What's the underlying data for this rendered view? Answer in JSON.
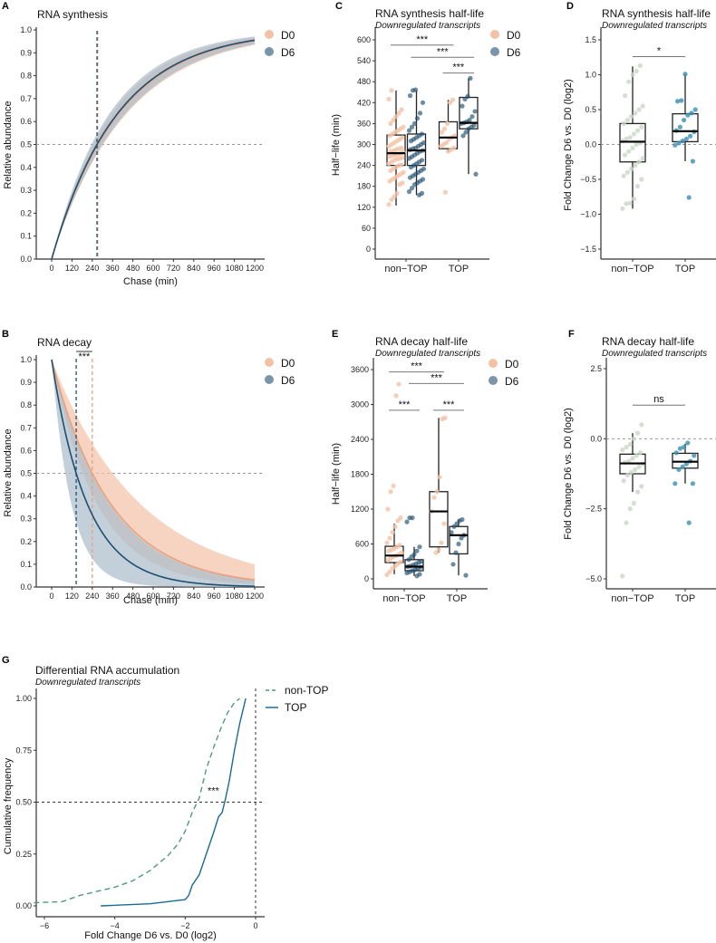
{
  "colors": {
    "D0_fill": "#f2c2a6",
    "D0_line": "#e9a07c",
    "D6_fill": "#a9bccb",
    "D6_line": "#1e4f70",
    "nonTOP_point": "#c9d6c8",
    "TOP_point": "#3b8fb1",
    "G_nonTOP": "#4d9a7c",
    "G_TOP": "#1a6a96"
  },
  "chart_data": [
    {
      "panel": "A",
      "type": "line",
      "title": "RNA synthesis",
      "xlabel": "Chase (min)",
      "ylabel": "Relative abundance",
      "xticks": [
        "0",
        "120",
        "240",
        "360",
        "480",
        "600",
        "720",
        "840",
        "960",
        "1080",
        "1200"
      ],
      "yticks": [
        "0.0",
        "0.1",
        "0.2",
        "0.3",
        "0.4",
        "0.5",
        "0.6",
        "0.7",
        "0.8",
        "0.9",
        "1.0"
      ],
      "xlim": [
        0,
        1200
      ],
      "ylim": [
        0,
        1
      ],
      "model": "1 - 2^(-t/halflife)",
      "hline": 0.5,
      "legend": [
        "D0",
        "D6"
      ],
      "series": [
        {
          "name": "D0",
          "halflife": 272,
          "band_halflife": [
            245,
            305
          ]
        },
        {
          "name": "D6",
          "halflife": 268,
          "band_halflife": [
            235,
            300
          ]
        }
      ]
    },
    {
      "panel": "B",
      "type": "line",
      "title": "RNA decay",
      "xlabel": "Chase (min)",
      "ylabel": "Relative abundance",
      "xticks": [
        "0",
        "120",
        "240",
        "360",
        "480",
        "600",
        "720",
        "840",
        "960",
        "1080",
        "1200"
      ],
      "yticks": [
        "0.0",
        "0.1",
        "0.2",
        "0.3",
        "0.4",
        "0.5",
        "0.6",
        "0.7",
        "0.8",
        "0.9",
        "1.0"
      ],
      "xlim": [
        0,
        1200
      ],
      "ylim": [
        0,
        1
      ],
      "model": "2^(-t/halflife)",
      "hline": 0.5,
      "significance": "***",
      "legend": [
        "D0",
        "D6"
      ],
      "series": [
        {
          "name": "D0",
          "halflife": 240,
          "band_halflife": [
            185,
            361
          ]
        },
        {
          "name": "D6",
          "halflife": 145,
          "band_halflife": [
            80,
            235
          ]
        }
      ]
    },
    {
      "panel": "C",
      "type": "box",
      "title": "RNA synthesis half-life",
      "subtitle": "Downregulated transcripts",
      "ylabel": "Half−life (min)",
      "categories": [
        "non−TOP",
        "TOP"
      ],
      "legend": [
        "D0",
        "D6"
      ],
      "ylim": [
        0,
        600
      ],
      "yticks": [
        "0",
        "60",
        "120",
        "180",
        "240",
        "300",
        "360",
        "420",
        "480",
        "540",
        "600"
      ],
      "groups": [
        {
          "cat": "non−TOP",
          "series": "D0",
          "q1": 240,
          "median": 275,
          "q3": 327,
          "whisker": [
            125,
            455
          ],
          "points": [
            128,
            142,
            150,
            160,
            185,
            190,
            195,
            200,
            205,
            210,
            215,
            220,
            225,
            230,
            235,
            240,
            242,
            245,
            250,
            255,
            258,
            260,
            262,
            265,
            268,
            270,
            272,
            275,
            278,
            280,
            282,
            285,
            288,
            290,
            295,
            300,
            305,
            310,
            315,
            320,
            325,
            330,
            335,
            340,
            345,
            350,
            360,
            370,
            380,
            390,
            400,
            430,
            455
          ]
        },
        {
          "cat": "non−TOP",
          "series": "D6",
          "q1": 240,
          "median": 283,
          "q3": 330,
          "whisker": [
            155,
            455
          ],
          "points": [
            155,
            160,
            165,
            175,
            185,
            190,
            195,
            200,
            205,
            210,
            215,
            220,
            225,
            230,
            235,
            240,
            245,
            250,
            255,
            260,
            265,
            270,
            275,
            280,
            283,
            285,
            288,
            290,
            295,
            300,
            305,
            310,
            315,
            320,
            325,
            330,
            340,
            350,
            360,
            375,
            390,
            420,
            440,
            455,
            457
          ]
        },
        {
          "cat": "TOP",
          "series": "D0",
          "q1": 288,
          "median": 320,
          "q3": 365,
          "whisker": [
            280,
            428
          ],
          "points": [
            163,
            280,
            285,
            290,
            295,
            300,
            305,
            315,
            320,
            325,
            335,
            345,
            360,
            420,
            428
          ]
        },
        {
          "cat": "TOP",
          "series": "D6",
          "q1": 345,
          "median": 362,
          "q3": 435,
          "whisker": [
            215,
            490
          ],
          "points": [
            215,
            325,
            335,
            345,
            350,
            355,
            360,
            362,
            365,
            370,
            380,
            395,
            410,
            430,
            438,
            490
          ]
        }
      ],
      "brackets": [
        {
          "from": 0,
          "to": 2,
          "y": 585,
          "label": "***"
        },
        {
          "from": 1,
          "to": 3,
          "y": 550,
          "label": "***"
        },
        {
          "from": 2,
          "to": 3,
          "y": 505,
          "label": "***"
        }
      ]
    },
    {
      "panel": "D",
      "type": "box",
      "title": "RNA synthesis half-life",
      "subtitle": "Downregulated transcripts",
      "ylabel": "Fold Change D6 vs. D0 (log2)",
      "categories": [
        "non−TOP",
        "TOP"
      ],
      "ylim": [
        -1.5,
        1.5
      ],
      "hline": 0,
      "yticks": [
        "−1.5",
        "−1.0",
        "−0.5",
        "0.0",
        "0.5",
        "1.0",
        "1.5"
      ],
      "groups": [
        {
          "cat": "non−TOP",
          "q1": -0.25,
          "median": 0.04,
          "q3": 0.3,
          "whisker": [
            -0.92,
            1.12
          ],
          "points": [
            -0.92,
            -0.85,
            -0.84,
            -0.78,
            -0.6,
            -0.5,
            -0.45,
            -0.4,
            -0.35,
            -0.3,
            -0.25,
            -0.2,
            -0.15,
            -0.1,
            -0.05,
            0,
            0.02,
            0.05,
            0.08,
            0.1,
            0.15,
            0.2,
            0.25,
            0.3,
            0.35,
            0.4,
            0.45,
            0.5,
            0.55,
            0.7,
            0.9,
            1.0,
            1.05,
            1.13
          ]
        },
        {
          "cat": "TOP",
          "q1": 0.04,
          "median": 0.19,
          "q3": 0.44,
          "whisker": [
            -0.24,
            1.01
          ],
          "points": [
            -0.76,
            -0.24,
            -0.01,
            0.02,
            0.05,
            0.08,
            0.12,
            0.18,
            0.2,
            0.25,
            0.35,
            0.42,
            0.45,
            0.5,
            0.62,
            0.63,
            1.01
          ]
        }
      ],
      "brackets": [
        {
          "from": 0,
          "to": 1,
          "y": 1.26,
          "label": "*"
        }
      ]
    },
    {
      "panel": "E",
      "type": "box",
      "title": "RNA decay half-life",
      "subtitle": "Downregulated transcripts",
      "ylabel": "Half−life (min)",
      "categories": [
        "non−TOP",
        "TOP"
      ],
      "legend": [
        "D0",
        "D6"
      ],
      "ylim": [
        0,
        3600
      ],
      "yticks": [
        "0",
        "600",
        "1200",
        "1800",
        "2400",
        "3000",
        "3600"
      ],
      "groups": [
        {
          "cat": "non−TOP",
          "series": "D0",
          "q1": 280,
          "median": 400,
          "q3": 560,
          "whisker": [
            80,
            950
          ],
          "points": [
            70,
            120,
            180,
            220,
            260,
            290,
            320,
            350,
            380,
            400,
            420,
            450,
            480,
            500,
            520,
            550,
            580,
            620,
            700,
            800,
            900,
            1000,
            1050,
            1200,
            1500,
            1600,
            3150,
            3350
          ]
        },
        {
          "cat": "non−TOP",
          "series": "D6",
          "q1": 140,
          "median": 210,
          "q3": 330,
          "whisker": [
            50,
            550
          ],
          "points": [
            50,
            80,
            100,
            120,
            140,
            160,
            180,
            200,
            210,
            220,
            240,
            260,
            280,
            300,
            330,
            380,
            420,
            480,
            550,
            980,
            1050,
            1050
          ]
        },
        {
          "cat": "TOP",
          "series": "D0",
          "q1": 550,
          "median": 1160,
          "q3": 1500,
          "whisker": [
            450,
            2770
          ],
          "points": [
            450,
            500,
            620,
            950,
            1160,
            1400,
            1500,
            1750,
            2750,
            2770
          ]
        },
        {
          "cat": "TOP",
          "series": "D6",
          "q1": 430,
          "median": 750,
          "q3": 900,
          "whisker": [
            60,
            1020
          ],
          "points": [
            60,
            250,
            450,
            600,
            700,
            750,
            800,
            900,
            950,
            1000,
            1020
          ]
        }
      ],
      "brackets": [
        {
          "from": 0,
          "to": 2,
          "y": 3560,
          "label": "***"
        },
        {
          "from": 1,
          "to": 3,
          "y": 3360,
          "label": "***"
        },
        {
          "from": 0,
          "to": 1,
          "y": 2900,
          "label": "***"
        },
        {
          "from": 2,
          "to": 3,
          "y": 2900,
          "label": "***"
        }
      ]
    },
    {
      "panel": "F",
      "type": "box",
      "title": "RNA decay half-life",
      "subtitle": "Downregulated transcripts",
      "ylabel": "Fold Change D6 vs. D0 (log2)",
      "categories": [
        "non−TOP",
        "TOP"
      ],
      "ylim": [
        -5,
        2.5
      ],
      "hline": 0,
      "yticks": [
        "−5.0",
        "−2.5",
        "0.0",
        "2.5"
      ],
      "groups": [
        {
          "cat": "non−TOP",
          "q1": -1.25,
          "median": -0.88,
          "q3": -0.55,
          "whisker": [
            -1.9,
            0.2
          ],
          "points": [
            -4.9,
            -3,
            -2.5,
            -2.3,
            -1.9,
            -1.7,
            -1.5,
            -1.3,
            -1.2,
            -1.1,
            -1.0,
            -0.9,
            -0.85,
            -0.8,
            -0.7,
            -0.6,
            -0.5,
            -0.4,
            -0.3,
            -0.2,
            0,
            0.2,
            0.5
          ]
        },
        {
          "cat": "TOP",
          "q1": -1.05,
          "median": -0.82,
          "q3": -0.52,
          "whisker": [
            -1.6,
            -0.18
          ],
          "points": [
            -3,
            -1.6,
            -1.6,
            -1.1,
            -1.0,
            -0.9,
            -0.8,
            -0.6,
            -0.5,
            -0.35,
            -0.3,
            -0.15
          ]
        }
      ],
      "brackets": [
        {
          "from": 0,
          "to": 1,
          "y": 1.2,
          "label": "ns"
        }
      ]
    },
    {
      "panel": "G",
      "type": "line",
      "title": "Differential RNA accumulation",
      "subtitle": "Downregulated transcripts",
      "xlabel": "Fold Change D6 vs. D0 (log2)",
      "ylabel": "Cumulative frequency",
      "xticks": [
        "−6",
        "−4",
        "−2",
        "0"
      ],
      "yticks": [
        "0.00",
        "0.25",
        "0.50",
        "0.75",
        "1.00"
      ],
      "xlim": [
        -6.3,
        0.3
      ],
      "ylim": [
        0,
        1
      ],
      "hline": 0.5,
      "vline": 0,
      "significance": "***",
      "legend": [
        "non-TOP",
        "TOP"
      ],
      "series": [
        {
          "name": "non-TOP",
          "points": [
            [
              -6.3,
              0.015
            ],
            [
              -5.5,
              0.02
            ],
            [
              -5,
              0.05
            ],
            [
              -4.5,
              0.07
            ],
            [
              -4,
              0.09
            ],
            [
              -3.5,
              0.12
            ],
            [
              -3,
              0.17
            ],
            [
              -2.5,
              0.24
            ],
            [
              -2.2,
              0.3
            ],
            [
              -2,
              0.36
            ],
            [
              -1.8,
              0.45
            ],
            [
              -1.6,
              0.52
            ],
            [
              -1.4,
              0.66
            ],
            [
              -1.2,
              0.76
            ],
            [
              -1,
              0.85
            ],
            [
              -0.8,
              0.93
            ],
            [
              -0.6,
              0.98
            ],
            [
              -0.45,
              1.0
            ]
          ]
        },
        {
          "name": "TOP",
          "points": [
            [
              -4.4,
              0
            ],
            [
              -3,
              0.01
            ],
            [
              -2,
              0.03
            ],
            [
              -1.9,
              0.05
            ],
            [
              -1.8,
              0.1
            ],
            [
              -1.6,
              0.15
            ],
            [
              -1.4,
              0.25
            ],
            [
              -1.2,
              0.35
            ],
            [
              -1.05,
              0.43
            ],
            [
              -0.95,
              0.45
            ],
            [
              -0.85,
              0.52
            ],
            [
              -0.75,
              0.6
            ],
            [
              -0.6,
              0.75
            ],
            [
              -0.45,
              0.88
            ],
            [
              -0.35,
              0.95
            ],
            [
              -0.28,
              1.0
            ]
          ]
        }
      ]
    }
  ]
}
